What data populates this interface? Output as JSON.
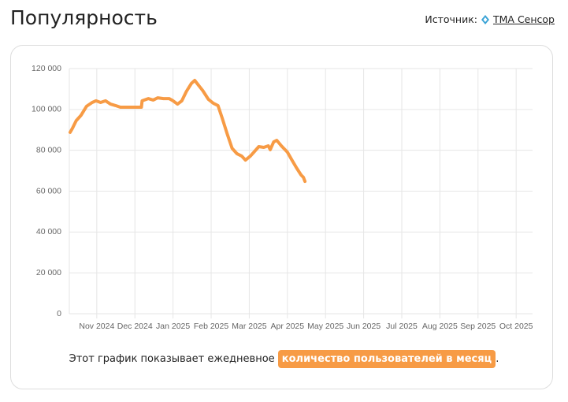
{
  "header": {
    "title": "Популярность",
    "source_label": "Источник:",
    "source_link": "TMA Сенсор"
  },
  "footer": {
    "text": "Этот график показывает ежедневное",
    "highlight": "количество пользователей в месяц",
    "end": "."
  },
  "chart_data": {
    "type": "line",
    "color": "#f79b45",
    "grid": true,
    "x": [
      0.3,
      0.36,
      0.46,
      0.59,
      0.73,
      0.88,
      0.98,
      1.1,
      1.23,
      1.36,
      1.49,
      1.62,
      1.79,
      2.0,
      2.17,
      2.19,
      2.35,
      2.48,
      2.6,
      2.75,
      2.9,
      3.0,
      3.12,
      3.23,
      3.35,
      3.48,
      3.57,
      3.65,
      3.78,
      3.93,
      4.06,
      4.18,
      4.29,
      4.42,
      4.55,
      4.68,
      4.8,
      4.9,
      5.03,
      5.14,
      5.25,
      5.38,
      5.5,
      5.55,
      5.64,
      5.72,
      5.84,
      6.0,
      6.12,
      6.24,
      6.36,
      6.42,
      6.46
    ],
    "values": [
      88800,
      90700,
      94500,
      97200,
      101500,
      103400,
      104200,
      103400,
      104200,
      102600,
      101900,
      101100,
      101100,
      101100,
      101100,
      104200,
      105300,
      104600,
      105700,
      105300,
      105300,
      104200,
      102600,
      104200,
      108800,
      112700,
      114200,
      112300,
      109200,
      104900,
      103000,
      101900,
      95700,
      88000,
      81000,
      78300,
      77200,
      75200,
      77200,
      79500,
      81800,
      81400,
      82200,
      80300,
      84100,
      84900,
      82200,
      79100,
      75200,
      71400,
      67900,
      66800,
      64800
    ],
    "xlim": [
      0.28,
      12.43
    ],
    "xticks": [
      {
        "value": 1,
        "label": "Nov 2024"
      },
      {
        "value": 2,
        "label": "Dec 2024"
      },
      {
        "value": 3,
        "label": "Jan 2025"
      },
      {
        "value": 4,
        "label": "Feb 2025"
      },
      {
        "value": 5,
        "label": "Mar 2025"
      },
      {
        "value": 6,
        "label": "Apr 2025"
      },
      {
        "value": 7,
        "label": "May 2025"
      },
      {
        "value": 8,
        "label": "Jun 2025"
      },
      {
        "value": 9,
        "label": "Jul 2025"
      },
      {
        "value": 10,
        "label": "Aug 2025"
      },
      {
        "value": 11,
        "label": "Sep 2025"
      },
      {
        "value": 12,
        "label": "Oct 2025"
      }
    ],
    "ylim": [
      0,
      120000
    ],
    "yticks": [
      0,
      {
        "value": 20000,
        "label": "20 000"
      },
      {
        "value": 40000,
        "label": "40 000"
      },
      {
        "value": 60000,
        "label": "60 000"
      },
      {
        "value": 80000,
        "label": "80 000"
      },
      {
        "value": 100000,
        "label": "100 000"
      },
      {
        "value": 120000,
        "label": "120 000"
      }
    ]
  }
}
